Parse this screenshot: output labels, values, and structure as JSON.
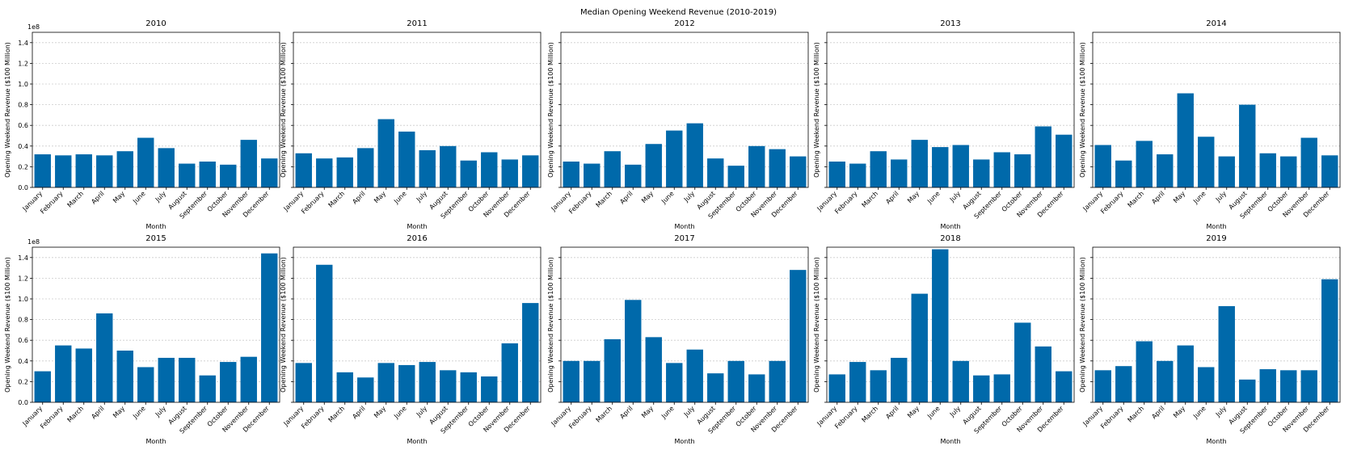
{
  "figure": {
    "title": "Median Opening Weekend Revenue (2010-2019)",
    "bar_color": "#0069aa",
    "offset_text": "1e8"
  },
  "chart_data": [
    {
      "type": "bar",
      "title": "2010",
      "xlabel": "Month",
      "ylabel": "Opening Weekend Revenue ($100 Million)",
      "ylim": [
        0,
        150000000.0
      ],
      "yticks": [
        "0.0",
        "0.2",
        "0.4",
        "0.6",
        "0.8",
        "1.0",
        "1.2",
        "1.4"
      ],
      "grid": true,
      "categories": [
        "January",
        "February",
        "March",
        "April",
        "May",
        "June",
        "July",
        "August",
        "September",
        "October",
        "November",
        "December"
      ],
      "values": [
        32000000,
        31000000,
        32000000,
        31000000,
        35000000,
        48000000,
        38000000,
        23000000,
        25000000,
        22000000,
        46000000,
        28000000
      ]
    },
    {
      "type": "bar",
      "title": "2011",
      "xlabel": "Month",
      "ylabel": "Opening Weekend Revenue ($100 Million)",
      "ylim": [
        0,
        150000000.0
      ],
      "grid": true,
      "categories": [
        "January",
        "February",
        "March",
        "April",
        "May",
        "June",
        "July",
        "August",
        "September",
        "October",
        "November",
        "December"
      ],
      "values": [
        33000000,
        28000000,
        29000000,
        38000000,
        66000000,
        54000000,
        36000000,
        40000000,
        26000000,
        34000000,
        27000000,
        31000000
      ]
    },
    {
      "type": "bar",
      "title": "2012",
      "xlabel": "Month",
      "ylabel": "Opening Weekend Revenue ($100 Million)",
      "ylim": [
        0,
        150000000.0
      ],
      "grid": true,
      "categories": [
        "January",
        "February",
        "March",
        "April",
        "May",
        "June",
        "July",
        "August",
        "September",
        "October",
        "November",
        "December"
      ],
      "values": [
        25000000,
        23000000,
        35000000,
        22000000,
        42000000,
        55000000,
        62000000,
        28000000,
        21000000,
        40000000,
        37000000,
        30000000
      ]
    },
    {
      "type": "bar",
      "title": "2013",
      "xlabel": "Month",
      "ylabel": "Opening Weekend Revenue ($100 Million)",
      "ylim": [
        0,
        150000000.0
      ],
      "grid": true,
      "categories": [
        "January",
        "February",
        "March",
        "April",
        "May",
        "June",
        "July",
        "August",
        "September",
        "October",
        "November",
        "December"
      ],
      "values": [
        25000000,
        23000000,
        35000000,
        27000000,
        46000000,
        39000000,
        41000000,
        27000000,
        34000000,
        32000000,
        59000000,
        51000000
      ]
    },
    {
      "type": "bar",
      "title": "2014",
      "xlabel": "Month",
      "ylabel": "Opening Weekend Revenue ($100 Million)",
      "ylim": [
        0,
        150000000.0
      ],
      "grid": true,
      "categories": [
        "January",
        "February",
        "March",
        "April",
        "May",
        "June",
        "July",
        "August",
        "September",
        "October",
        "November",
        "December"
      ],
      "values": [
        41000000,
        26000000,
        45000000,
        32000000,
        91000000,
        49000000,
        30000000,
        80000000,
        33000000,
        30000000,
        48000000,
        31000000
      ]
    },
    {
      "type": "bar",
      "title": "2015",
      "xlabel": "Month",
      "ylabel": "Opening Weekend Revenue ($100 Million)",
      "ylim": [
        0,
        150000000.0
      ],
      "yticks": [
        "0.0",
        "0.2",
        "0.4",
        "0.6",
        "0.8",
        "1.0",
        "1.2",
        "1.4"
      ],
      "grid": true,
      "categories": [
        "January",
        "February",
        "March",
        "April",
        "May",
        "June",
        "July",
        "August",
        "September",
        "October",
        "November",
        "December"
      ],
      "values": [
        30000000,
        55000000,
        52000000,
        86000000,
        50000000,
        34000000,
        43000000,
        43000000,
        26000000,
        39000000,
        44000000,
        144000000
      ]
    },
    {
      "type": "bar",
      "title": "2016",
      "xlabel": "Month",
      "ylabel": "Opening Weekend Revenue ($100 Million)",
      "ylim": [
        0,
        150000000.0
      ],
      "grid": true,
      "categories": [
        "January",
        "February",
        "March",
        "April",
        "May",
        "June",
        "July",
        "August",
        "September",
        "October",
        "November",
        "December"
      ],
      "values": [
        38000000,
        133000000,
        29000000,
        24000000,
        38000000,
        36000000,
        39000000,
        31000000,
        29000000,
        25000000,
        57000000,
        96000000
      ]
    },
    {
      "type": "bar",
      "title": "2017",
      "xlabel": "Month",
      "ylabel": "Opening Weekend Revenue ($100 Million)",
      "ylim": [
        0,
        150000000.0
      ],
      "grid": true,
      "categories": [
        "January",
        "February",
        "March",
        "April",
        "May",
        "June",
        "July",
        "August",
        "September",
        "October",
        "November",
        "December"
      ],
      "values": [
        40000000,
        40000000,
        61000000,
        99000000,
        63000000,
        38000000,
        51000000,
        28000000,
        40000000,
        27000000,
        40000000,
        128000000
      ]
    },
    {
      "type": "bar",
      "title": "2018",
      "xlabel": "Month",
      "ylabel": "Opening Weekend Revenue ($100 Million)",
      "ylim": [
        0,
        150000000.0
      ],
      "grid": true,
      "categories": [
        "January",
        "February",
        "March",
        "April",
        "May",
        "June",
        "July",
        "August",
        "September",
        "October",
        "November",
        "December"
      ],
      "values": [
        27000000,
        39000000,
        31000000,
        43000000,
        105000000,
        148000000,
        40000000,
        26000000,
        27000000,
        77000000,
        54000000,
        30000000
      ]
    },
    {
      "type": "bar",
      "title": "2019",
      "xlabel": "Month",
      "ylabel": "Opening Weekend Revenue ($100 Million)",
      "ylim": [
        0,
        150000000.0
      ],
      "grid": true,
      "categories": [
        "January",
        "February",
        "March",
        "April",
        "May",
        "June",
        "July",
        "August",
        "September",
        "October",
        "November",
        "December"
      ],
      "values": [
        31000000,
        35000000,
        59000000,
        40000000,
        55000000,
        34000000,
        93000000,
        22000000,
        32000000,
        31000000,
        31000000,
        119000000
      ]
    }
  ]
}
